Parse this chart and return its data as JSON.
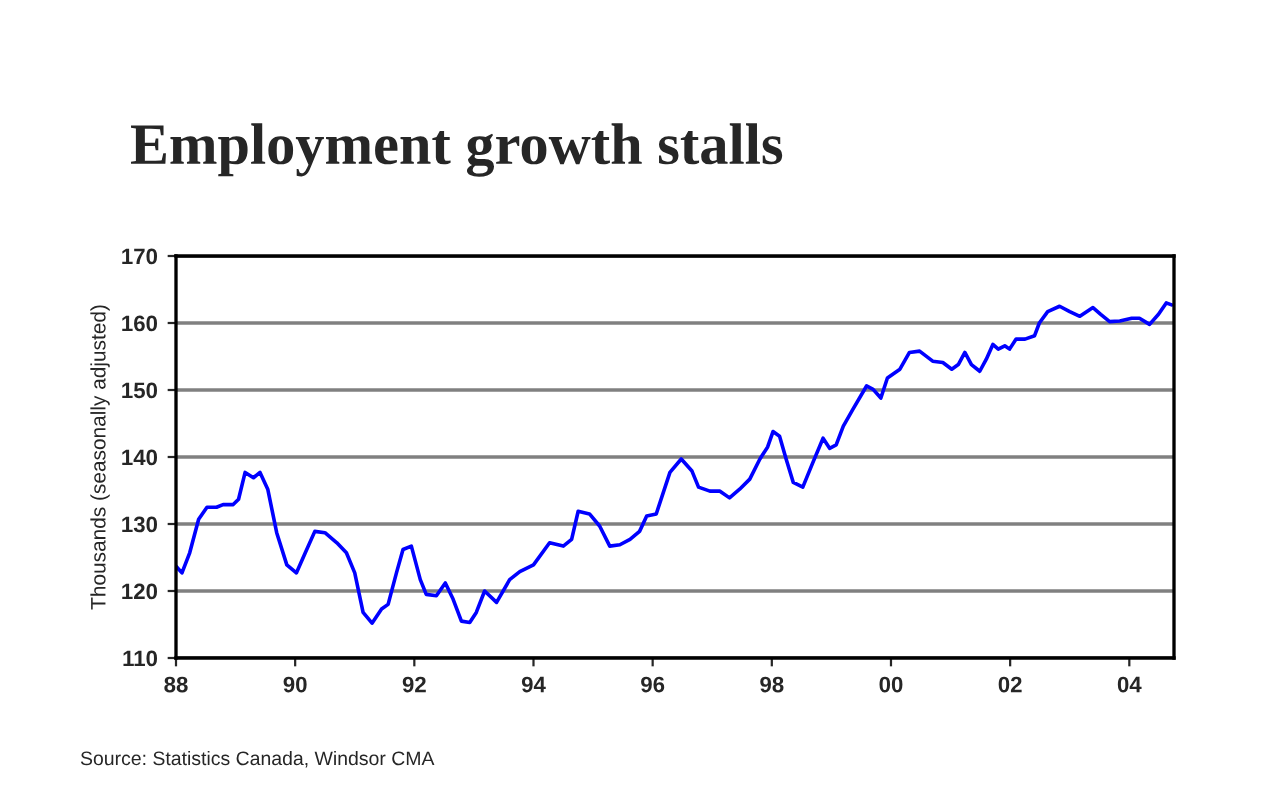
{
  "chart_data": {
    "type": "line",
    "title": "Employment growth stalls",
    "ylabel": "Thousands (seasonally adjusted)",
    "annotations": [
      "Source: Statistics Canada, Windsor CMA"
    ],
    "series": [
      {
        "color": "#0000ff",
        "x": [
          1988.0,
          1988.1,
          1988.23,
          1988.38,
          1988.52,
          1988.68,
          1988.79,
          1988.96,
          1989.05,
          1989.16,
          1989.3,
          1989.41,
          1989.54,
          1989.69,
          1989.86,
          1990.02,
          1990.17,
          1990.33,
          1990.5,
          1990.7,
          1990.86,
          1991.0,
          1991.14,
          1991.29,
          1991.45,
          1991.56,
          1991.7,
          1991.81,
          1991.95,
          1992.1,
          1992.2,
          1992.37,
          1992.52,
          1992.65,
          1992.79,
          1992.93,
          1993.04,
          1993.18,
          1993.38,
          1993.6,
          1993.77,
          1994.0,
          1994.27,
          1994.5,
          1994.64,
          1994.75,
          1994.94,
          1995.11,
          1995.28,
          1995.45,
          1995.62,
          1995.78,
          1995.9,
          1996.06,
          1996.29,
          1996.48,
          1996.66,
          1996.77,
          1996.96,
          1997.13,
          1997.29,
          1997.46,
          1997.63,
          1997.8,
          1997.93,
          1998.02,
          1998.13,
          1998.24,
          1998.36,
          1998.52,
          1998.69,
          1998.86,
          1998.97,
          1999.08,
          1999.2,
          1999.36,
          1999.59,
          1999.7,
          1999.83,
          1999.94,
          2000.15,
          2000.31,
          2000.48,
          2000.7,
          2000.87,
          2001.02,
          2001.13,
          2001.24,
          2001.35,
          2001.49,
          2001.6,
          2001.71,
          2001.8,
          2001.91,
          2001.99,
          2002.1,
          2002.25,
          2002.41,
          2002.49,
          2002.63,
          2002.83,
          2003.0,
          2003.17,
          2003.39,
          2003.52,
          2003.67,
          2003.84,
          2004.04,
          2004.17,
          2004.34,
          2004.49,
          2004.62,
          2004.71
        ],
        "values": [
          123.7,
          122.7,
          125.7,
          130.7,
          132.5,
          132.5,
          132.9,
          132.9,
          133.7,
          137.7,
          136.9,
          137.7,
          135.2,
          128.7,
          123.9,
          122.7,
          125.7,
          128.9,
          128.7,
          127.2,
          125.7,
          122.7,
          116.8,
          115.2,
          117.3,
          118.0,
          122.7,
          126.2,
          126.7,
          121.7,
          119.5,
          119.3,
          121.2,
          118.8,
          115.5,
          115.3,
          116.8,
          120.0,
          118.3,
          121.7,
          122.9,
          123.9,
          127.2,
          126.7,
          127.7,
          131.9,
          131.5,
          129.7,
          126.7,
          126.9,
          127.7,
          128.9,
          131.2,
          131.5,
          137.7,
          139.7,
          137.9,
          135.5,
          134.9,
          134.9,
          133.9,
          135.2,
          136.7,
          139.7,
          141.5,
          143.8,
          143.1,
          139.7,
          136.2,
          135.5,
          139.2,
          142.8,
          141.3,
          141.8,
          144.6,
          147.1,
          150.6,
          150.1,
          148.8,
          151.8,
          153.1,
          155.6,
          155.8,
          154.3,
          154.1,
          153.1,
          153.8,
          155.6,
          153.8,
          152.8,
          154.6,
          156.8,
          156.1,
          156.6,
          156.1,
          157.6,
          157.6,
          158.1,
          160.0,
          161.7,
          162.5,
          161.7,
          161.0,
          162.3,
          161.3,
          160.2,
          160.3,
          160.7,
          160.7,
          159.8,
          161.3,
          163.0,
          162.7
        ]
      }
    ],
    "xlim": [
      1988,
      2004.75
    ],
    "xticks": [
      {
        "value": 1988,
        "label": "88"
      },
      {
        "value": 1990,
        "label": "90"
      },
      {
        "value": 1992,
        "label": "92"
      },
      {
        "value": 1994,
        "label": "94"
      },
      {
        "value": 1996,
        "label": "96"
      },
      {
        "value": 1998,
        "label": "98"
      },
      {
        "value": 2000,
        "label": "00"
      },
      {
        "value": 2002,
        "label": "02"
      },
      {
        "value": 2004,
        "label": "04"
      }
    ],
    "ylim": [
      110,
      170
    ],
    "yticks": [
      110,
      120,
      130,
      140,
      150,
      160,
      170
    ],
    "grid": "y",
    "marker": "none",
    "line_style": "solid"
  }
}
